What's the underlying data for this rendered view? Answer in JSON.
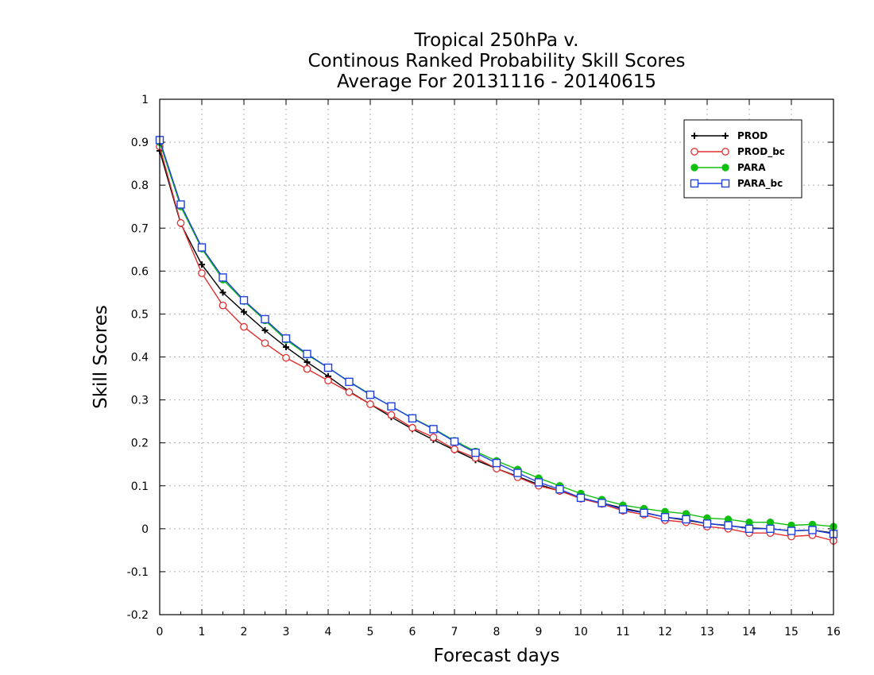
{
  "chart_data": {
    "type": "line",
    "title": [
      "Tropical 250hPa v.",
      "Continous Ranked Probability Skill Scores",
      "Average For 20131116 - 20140615"
    ],
    "xlabel": "Forecast days",
    "ylabel": "Skill Scores",
    "xlim": [
      0,
      16
    ],
    "ylim": [
      -0.2,
      1
    ],
    "xticks": [
      0,
      1,
      2,
      3,
      4,
      5,
      6,
      7,
      8,
      9,
      10,
      11,
      12,
      13,
      14,
      15,
      16
    ],
    "yticks": [
      -0.2,
      -0.1,
      0,
      0.1,
      0.2,
      0.3,
      0.4,
      0.5,
      0.6,
      0.7,
      0.8,
      0.9,
      1
    ],
    "ytick_labels": [
      "-0.2",
      "-0.1",
      "0",
      "0.1",
      "0.2",
      "0.3",
      "0.4",
      "0.5",
      "0.6",
      "0.7",
      "0.8",
      "0.9",
      "1"
    ],
    "grid": true,
    "legend_position": "top-right",
    "x": [
      0,
      0.5,
      1,
      1.5,
      2,
      2.5,
      3,
      3.5,
      4,
      4.5,
      5,
      5.5,
      6,
      6.5,
      7,
      7.5,
      8,
      8.5,
      9,
      9.5,
      10,
      10.5,
      11,
      11.5,
      12,
      12.5,
      13,
      13.5,
      14,
      14.5,
      15,
      15.5,
      16
    ],
    "series": [
      {
        "name": "PROD",
        "color": "#000000",
        "marker": "plus",
        "values": [
          0.88,
          0.71,
          0.615,
          0.55,
          0.505,
          0.462,
          0.423,
          0.388,
          0.355,
          0.32,
          0.29,
          0.26,
          0.232,
          0.207,
          0.183,
          0.16,
          0.14,
          0.122,
          0.103,
          0.088,
          0.072,
          0.06,
          0.048,
          0.038,
          0.027,
          0.02,
          0.012,
          0.007,
          0.002,
          0.0,
          -0.005,
          -0.003,
          -0.01
        ]
      },
      {
        "name": "PROD_bc",
        "color": "#e03030",
        "marker": "circle-open",
        "values": [
          0.89,
          0.712,
          0.595,
          0.52,
          0.47,
          0.432,
          0.398,
          0.372,
          0.345,
          0.318,
          0.29,
          0.265,
          0.235,
          0.213,
          0.185,
          0.165,
          0.14,
          0.12,
          0.1,
          0.088,
          0.07,
          0.058,
          0.042,
          0.033,
          0.02,
          0.015,
          0.005,
          0.0,
          -0.01,
          -0.01,
          -0.018,
          -0.015,
          -0.028
        ]
      },
      {
        "name": "PARA",
        "color": "#10c010",
        "marker": "circle-filled",
        "values": [
          0.9,
          0.75,
          0.652,
          0.58,
          0.53,
          0.485,
          0.44,
          0.405,
          0.375,
          0.343,
          0.313,
          0.285,
          0.258,
          0.233,
          0.205,
          0.18,
          0.158,
          0.138,
          0.118,
          0.1,
          0.082,
          0.068,
          0.055,
          0.047,
          0.04,
          0.035,
          0.025,
          0.022,
          0.015,
          0.015,
          0.008,
          0.01,
          0.005
        ]
      },
      {
        "name": "PARA_bc",
        "color": "#2040e0",
        "marker": "square-open",
        "values": [
          0.905,
          0.755,
          0.655,
          0.585,
          0.532,
          0.488,
          0.443,
          0.407,
          0.375,
          0.342,
          0.312,
          0.285,
          0.257,
          0.232,
          0.203,
          0.177,
          0.153,
          0.13,
          0.108,
          0.092,
          0.072,
          0.06,
          0.045,
          0.037,
          0.027,
          0.022,
          0.012,
          0.008,
          0.0,
          0.0,
          -0.005,
          -0.003,
          -0.012
        ]
      }
    ]
  }
}
